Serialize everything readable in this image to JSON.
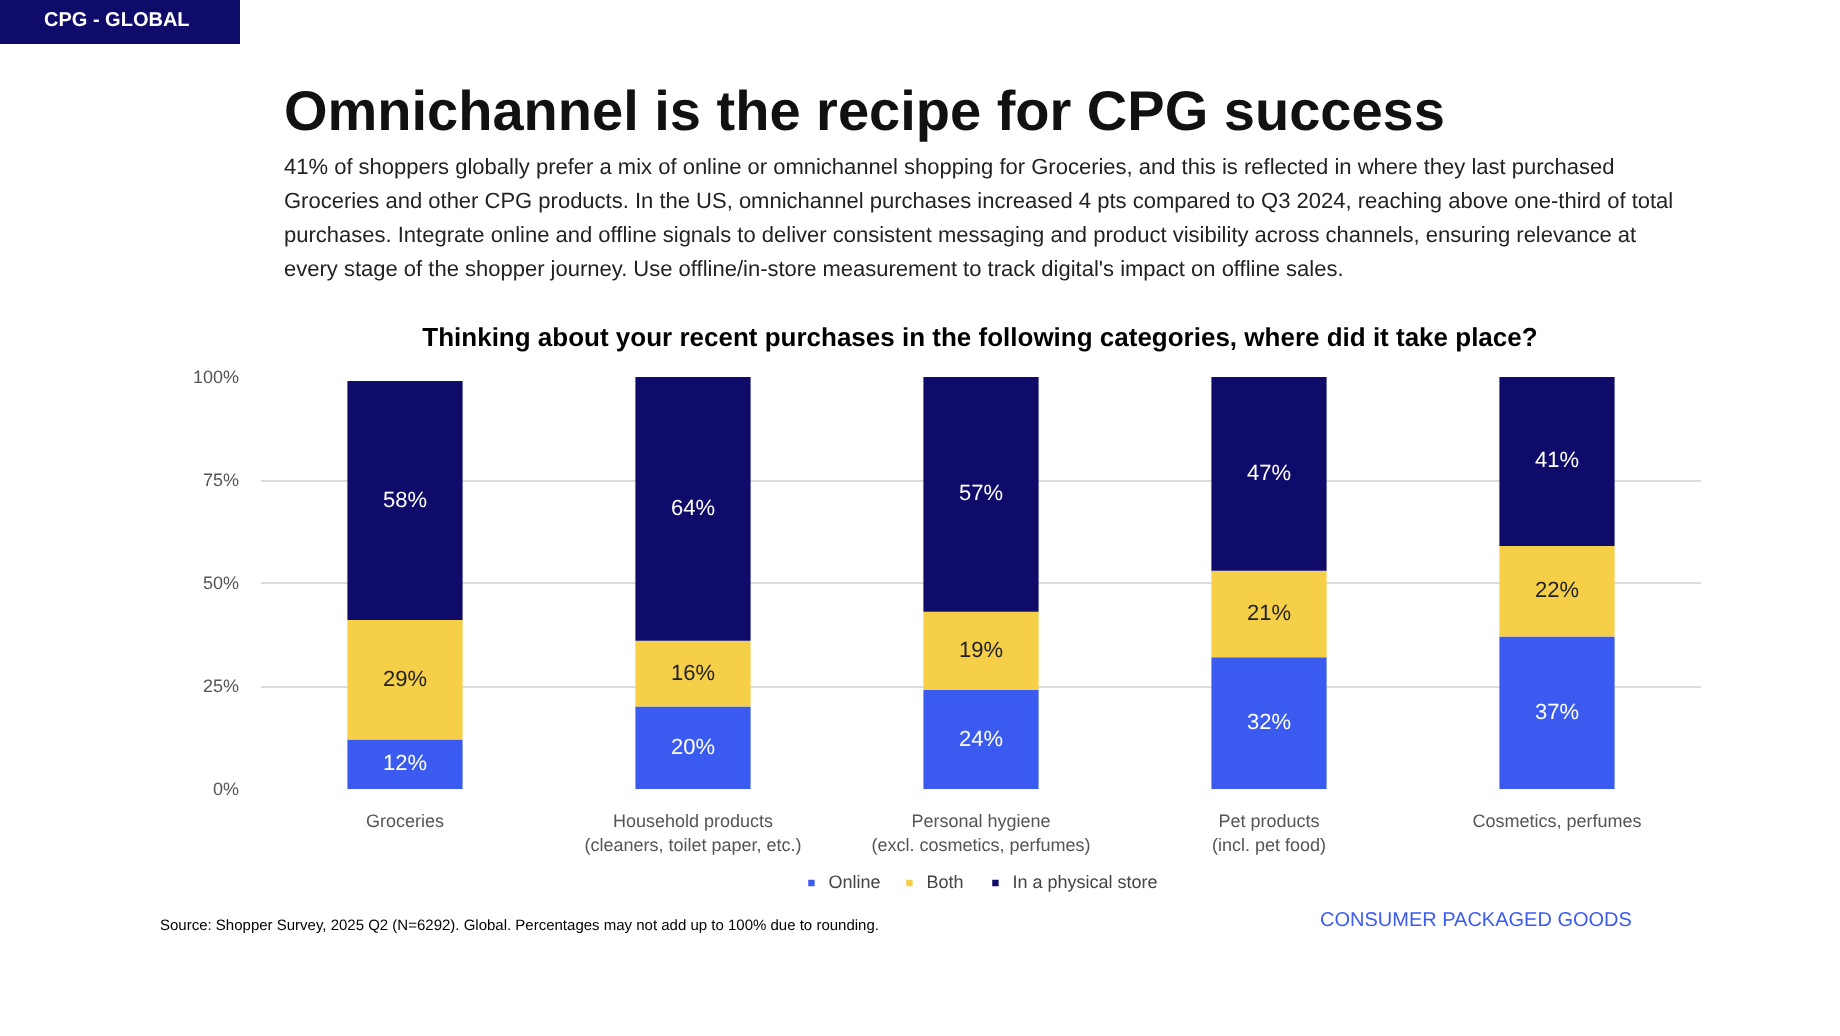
{
  "chart_data": {
    "type": "bar",
    "stacked": true,
    "title": "Omnichannel is the recipe for CPG success",
    "subtitle": "41% of shoppers globally prefer a mix of online or omnichannel shopping for Groceries, and this is reflected in where they last purchased Groceries and other CPG products. In the US, omnichannel purchases increased 4 pts compared to Q3 2024, reaching above one-third of total purchases. Integrate online and offline signals to deliver consistent messaging and product visibility across channels, ensuring relevance at every stage of the shopper journey. Use offline/in-store measurement to track digital's impact on offline sales.",
    "annotations": [
      "CPG - GLOBAL",
      "Thinking about your recent purchases in the following categories, where did it take place?",
      "Source: Shopper Survey, 2025 Q2 (N=6292). Global. Percentages may not add up to 100% due to rounding.",
      "CONSUMER PACKAGED GOODS"
    ],
    "categories": [
      "Groceries",
      "Household products (cleaners, toilet paper, etc.)",
      "Personal hygiene (excl. cosmetics, perfumes)",
      "Pet products (incl. pet food)",
      "Cosmetics, perfumes"
    ],
    "series": [
      {
        "name": "Online",
        "color": "#3b5bf0",
        "values": [
          12,
          20,
          24,
          32,
          37
        ],
        "value_labels": [
          "12%",
          "20%",
          "24%",
          "32%",
          "37%"
        ]
      },
      {
        "name": "Both",
        "color": "#f6cf48",
        "values": [
          29,
          16,
          19,
          21,
          22
        ],
        "value_labels": [
          "29%",
          "16%",
          "19%",
          "21%",
          "22%"
        ]
      },
      {
        "name": "In a physical store",
        "color": "#0e0b6b",
        "values": [
          58,
          64,
          57,
          47,
          41
        ],
        "value_labels": [
          "58%",
          "64%",
          "57%",
          "47%",
          "41%"
        ]
      }
    ],
    "ylim": [
      0,
      100
    ],
    "yticks": [
      {
        "value": 0,
        "label": "0%"
      },
      {
        "value": 25,
        "label": "25%"
      },
      {
        "value": 50,
        "label": "50%"
      },
      {
        "value": 75,
        "label": "75%"
      },
      {
        "value": 100,
        "label": "100%"
      }
    ],
    "grid": "y",
    "legend": "bottom"
  }
}
